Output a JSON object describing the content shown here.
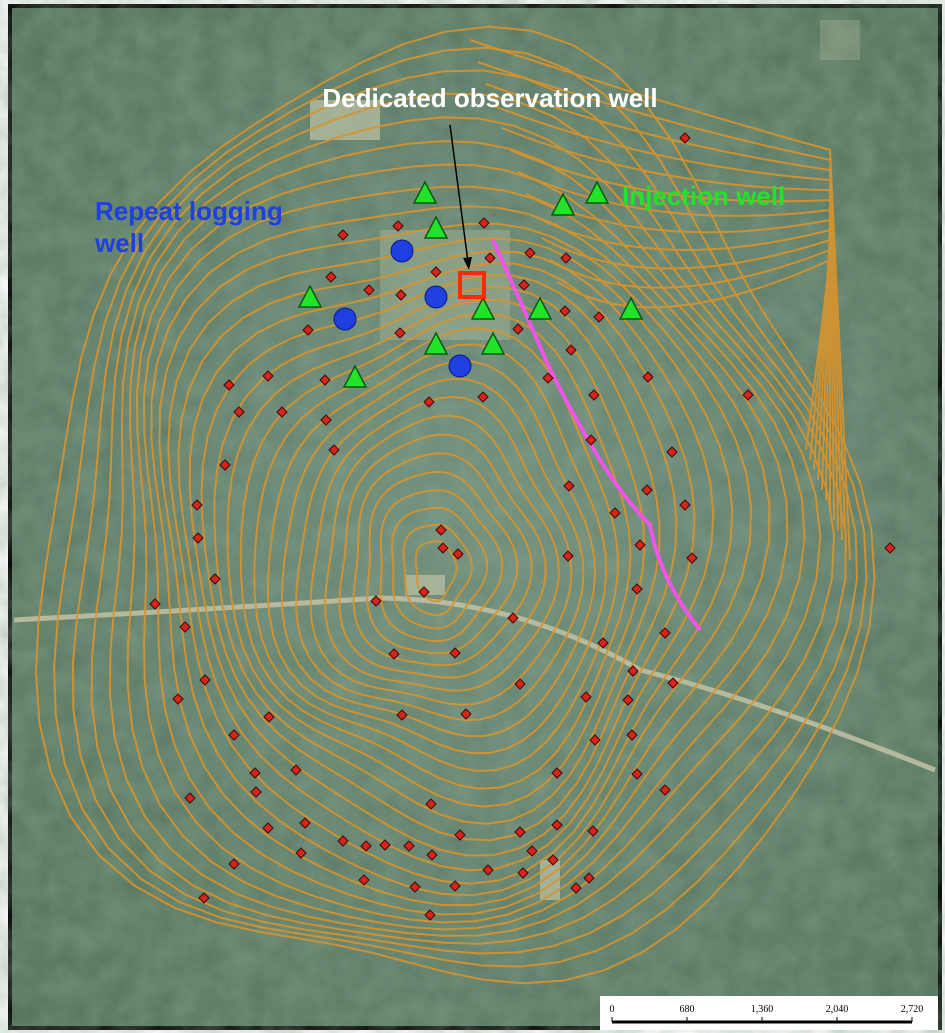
{
  "annotations": {
    "observation_well": "Dedicated observation well",
    "repeat_logging_well": "Repeat logging well",
    "injection_well": "Injection well"
  },
  "scale_bar": {
    "labels": [
      "0",
      "680",
      "1,360",
      "2,040",
      "2,720"
    ]
  }
}
